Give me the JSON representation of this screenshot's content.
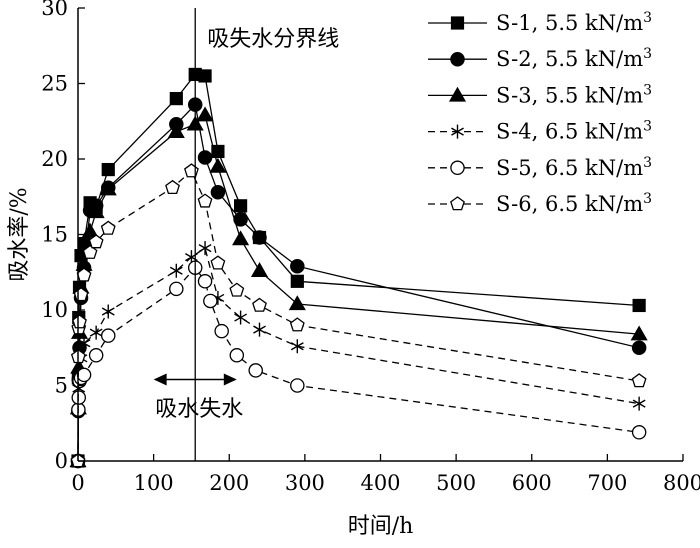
{
  "chart_data": {
    "type": "line",
    "title": "",
    "xlabel": "时间/h",
    "ylabel": "吸水率/%",
    "xlim": [
      0,
      800
    ],
    "ylim": [
      0,
      30
    ],
    "xticks": [
      0,
      100,
      200,
      300,
      400,
      500,
      600,
      700,
      800
    ],
    "yticks": [
      0,
      5,
      10,
      15,
      20,
      25,
      30
    ],
    "grid": false,
    "legend_position": "top-right",
    "annotations": {
      "boundary_label": "吸失水分界线",
      "boundary_x": 155,
      "phase_label": "吸水失水"
    },
    "series": [
      {
        "name": "S-1, 5.5 kN/m",
        "name_sup": "3",
        "marker": "square",
        "filled": true,
        "dashed": false,
        "x": [
          0,
          0.5,
          1,
          2,
          4,
          8,
          16,
          24,
          40,
          130,
          155,
          168,
          185,
          215,
          240,
          290,
          742
        ],
        "y": [
          0,
          5.5,
          9.5,
          11.5,
          13.6,
          14.4,
          17.1,
          16.8,
          19.3,
          24.0,
          25.6,
          25.5,
          20.5,
          16.9,
          14.8,
          11.9,
          10.3
        ]
      },
      {
        "name": "S-2, 5.5 kN/m",
        "name_sup": "3",
        "marker": "circle",
        "filled": true,
        "dashed": false,
        "x": [
          0,
          0.5,
          1,
          2,
          4,
          8,
          16,
          24,
          40,
          130,
          155,
          168,
          185,
          215,
          240,
          290,
          742
        ],
        "y": [
          0,
          3.3,
          5.4,
          7.5,
          10.8,
          12.8,
          16.6,
          16.9,
          18.1,
          22.3,
          23.6,
          20.1,
          17.8,
          16.0,
          14.8,
          12.9,
          7.5
        ]
      },
      {
        "name": "S-3, 5.5 kN/m",
        "name_sup": "3",
        "marker": "triangle",
        "filled": true,
        "dashed": false,
        "x": [
          0,
          0.5,
          1,
          2,
          4,
          8,
          16,
          24,
          40,
          130,
          155,
          168,
          185,
          215,
          240,
          290,
          742
        ],
        "y": [
          0,
          3.5,
          6.2,
          8.5,
          11.5,
          13.0,
          15.2,
          16.5,
          18.0,
          21.8,
          22.3,
          22.9,
          19.5,
          14.7,
          12.6,
          10.4,
          8.4
        ]
      },
      {
        "name": "S-4, 6.5 kN/m",
        "name_sup": "3",
        "marker": "asterisk",
        "filled": false,
        "dashed": true,
        "x": [
          0,
          0.5,
          1,
          2,
          4,
          8,
          24,
          40,
          130,
          150,
          168,
          185,
          215,
          240,
          290,
          742
        ],
        "y": [
          0,
          3.4,
          4.8,
          5.7,
          6.8,
          7.8,
          8.5,
          9.9,
          12.6,
          13.5,
          14.1,
          10.8,
          9.5,
          8.7,
          7.6,
          3.8
        ]
      },
      {
        "name": "S-5, 6.5 kN/m",
        "name_sup": "3",
        "marker": "circle",
        "filled": false,
        "dashed": true,
        "x": [
          0,
          0.5,
          1,
          2,
          4,
          8,
          24,
          40,
          130,
          155,
          168,
          175,
          190,
          210,
          235,
          290,
          742
        ],
        "y": [
          0,
          3.4,
          4.2,
          5.3,
          5.5,
          5.7,
          7.0,
          8.3,
          11.4,
          12.8,
          11.9,
          10.6,
          8.6,
          7.0,
          6.0,
          5.0,
          1.9
        ]
      },
      {
        "name": "S-6, 6.5 kN/m",
        "name_sup": "3",
        "marker": "pentagon",
        "filled": false,
        "dashed": true,
        "x": [
          0,
          0.5,
          1,
          2,
          4,
          8,
          16,
          24,
          40,
          125,
          150,
          168,
          185,
          210,
          240,
          290,
          742
        ],
        "y": [
          0,
          6.9,
          8.8,
          9.2,
          11.0,
          12.3,
          13.8,
          14.5,
          15.4,
          18.1,
          19.2,
          17.2,
          13.1,
          11.3,
          10.3,
          9.0,
          5.3
        ]
      }
    ]
  }
}
